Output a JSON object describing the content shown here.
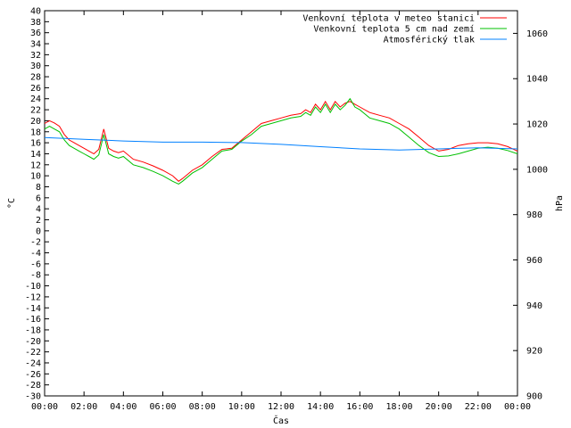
{
  "chart_data": {
    "type": "line",
    "xlabel": "Čas",
    "ylabel_left": "°C",
    "ylabel_right": "hPa",
    "x_ticks": [
      "00:00",
      "02:00",
      "04:00",
      "06:00",
      "08:00",
      "10:00",
      "12:00",
      "14:00",
      "16:00",
      "18:00",
      "20:00",
      "22:00",
      "00:00"
    ],
    "x_unit": "hours",
    "xlim": [
      0,
      24
    ],
    "ylim_left": [
      -30,
      40
    ],
    "yticks_left": [
      -30,
      -28,
      -26,
      -24,
      -22,
      -20,
      -18,
      -16,
      -14,
      -12,
      -10,
      -8,
      -6,
      -4,
      -2,
      0,
      2,
      4,
      6,
      8,
      10,
      12,
      14,
      16,
      18,
      20,
      22,
      24,
      26,
      28,
      30,
      32,
      34,
      36,
      38,
      40
    ],
    "ylim_right": [
      900,
      1070
    ],
    "yticks_right": [
      900,
      920,
      940,
      960,
      980,
      1000,
      1020,
      1040,
      1060
    ],
    "grid": false,
    "legend_position": "top-right",
    "series": [
      {
        "name": "Venkovní teplota v meteo stanici",
        "color": "#ff0000",
        "axis": "left",
        "x": [
          0,
          0.25,
          0.5,
          0.75,
          1.0,
          1.25,
          1.5,
          1.75,
          2.0,
          2.25,
          2.5,
          2.75,
          3.0,
          3.25,
          3.5,
          3.75,
          4.0,
          4.5,
          5.0,
          5.5,
          6.0,
          6.5,
          6.8,
          7.0,
          7.5,
          8.0,
          8.5,
          9.0,
          9.5,
          10.0,
          10.5,
          11.0,
          11.5,
          12.0,
          12.5,
          13.0,
          13.25,
          13.5,
          13.75,
          14.0,
          14.25,
          14.5,
          14.75,
          15.0,
          15.25,
          15.5,
          15.75,
          16.0,
          16.5,
          17.0,
          17.5,
          18.0,
          18.5,
          19.0,
          19.5,
          20.0,
          20.5,
          21.0,
          21.5,
          22.0,
          22.5,
          23.0,
          23.5,
          24.0
        ],
        "values": [
          19.5,
          20.0,
          19.6,
          19.0,
          17.5,
          16.5,
          16.0,
          15.5,
          15.0,
          14.5,
          14.0,
          14.8,
          18.5,
          15.0,
          14.5,
          14.2,
          14.5,
          13.0,
          12.5,
          11.8,
          11.0,
          10.0,
          9.0,
          9.5,
          11.0,
          12.0,
          13.5,
          14.8,
          15.0,
          16.5,
          18.0,
          19.5,
          20.0,
          20.5,
          21.0,
          21.3,
          22.0,
          21.5,
          23.0,
          22.0,
          23.5,
          22.0,
          23.5,
          22.5,
          23.2,
          23.5,
          23.0,
          22.5,
          21.5,
          21.0,
          20.5,
          19.5,
          18.5,
          17.0,
          15.5,
          14.5,
          14.8,
          15.5,
          15.8,
          16.0,
          16.0,
          15.8,
          15.3,
          14.5
        ]
      },
      {
        "name": "Venkovní teplota 5 cm nad zemí",
        "color": "#00c000",
        "axis": "left",
        "x": [
          0,
          0.25,
          0.5,
          0.75,
          1.0,
          1.25,
          1.5,
          1.75,
          2.0,
          2.25,
          2.5,
          2.75,
          3.0,
          3.25,
          3.5,
          3.75,
          4.0,
          4.5,
          5.0,
          5.5,
          6.0,
          6.5,
          6.8,
          7.0,
          7.5,
          8.0,
          8.5,
          9.0,
          9.5,
          10.0,
          10.5,
          11.0,
          11.5,
          12.0,
          12.5,
          13.0,
          13.25,
          13.5,
          13.75,
          14.0,
          14.25,
          14.5,
          14.75,
          15.0,
          15.25,
          15.5,
          15.75,
          16.0,
          16.5,
          17.0,
          17.5,
          18.0,
          18.5,
          19.0,
          19.5,
          20.0,
          20.5,
          21.0,
          21.5,
          22.0,
          22.5,
          23.0,
          23.5,
          24.0
        ],
        "values": [
          18.5,
          19.0,
          18.5,
          18.0,
          16.5,
          15.5,
          15.0,
          14.5,
          14.0,
          13.5,
          13.0,
          13.8,
          17.5,
          14.0,
          13.5,
          13.2,
          13.5,
          12.0,
          11.5,
          10.8,
          10.0,
          9.0,
          8.5,
          9.0,
          10.5,
          11.5,
          13.0,
          14.5,
          14.8,
          16.3,
          17.5,
          19.0,
          19.5,
          20.0,
          20.5,
          20.8,
          21.5,
          21.0,
          22.5,
          21.5,
          23.0,
          21.5,
          23.0,
          22.0,
          22.8,
          24.0,
          22.5,
          22.0,
          20.5,
          20.0,
          19.5,
          18.5,
          17.0,
          15.5,
          14.2,
          13.5,
          13.6,
          14.0,
          14.5,
          15.0,
          15.2,
          15.0,
          14.6,
          14.0
        ]
      },
      {
        "name": "Atmosférický tlak",
        "color": "#0080ff",
        "axis": "right",
        "x": [
          0,
          2,
          4,
          6,
          8,
          10,
          12,
          14,
          16,
          18,
          20,
          22,
          24
        ],
        "values": [
          1014,
          1013.2,
          1012.5,
          1012,
          1012,
          1011.8,
          1011,
          1010,
          1009,
          1008.5,
          1009,
          1009.5,
          1009
        ]
      }
    ]
  }
}
